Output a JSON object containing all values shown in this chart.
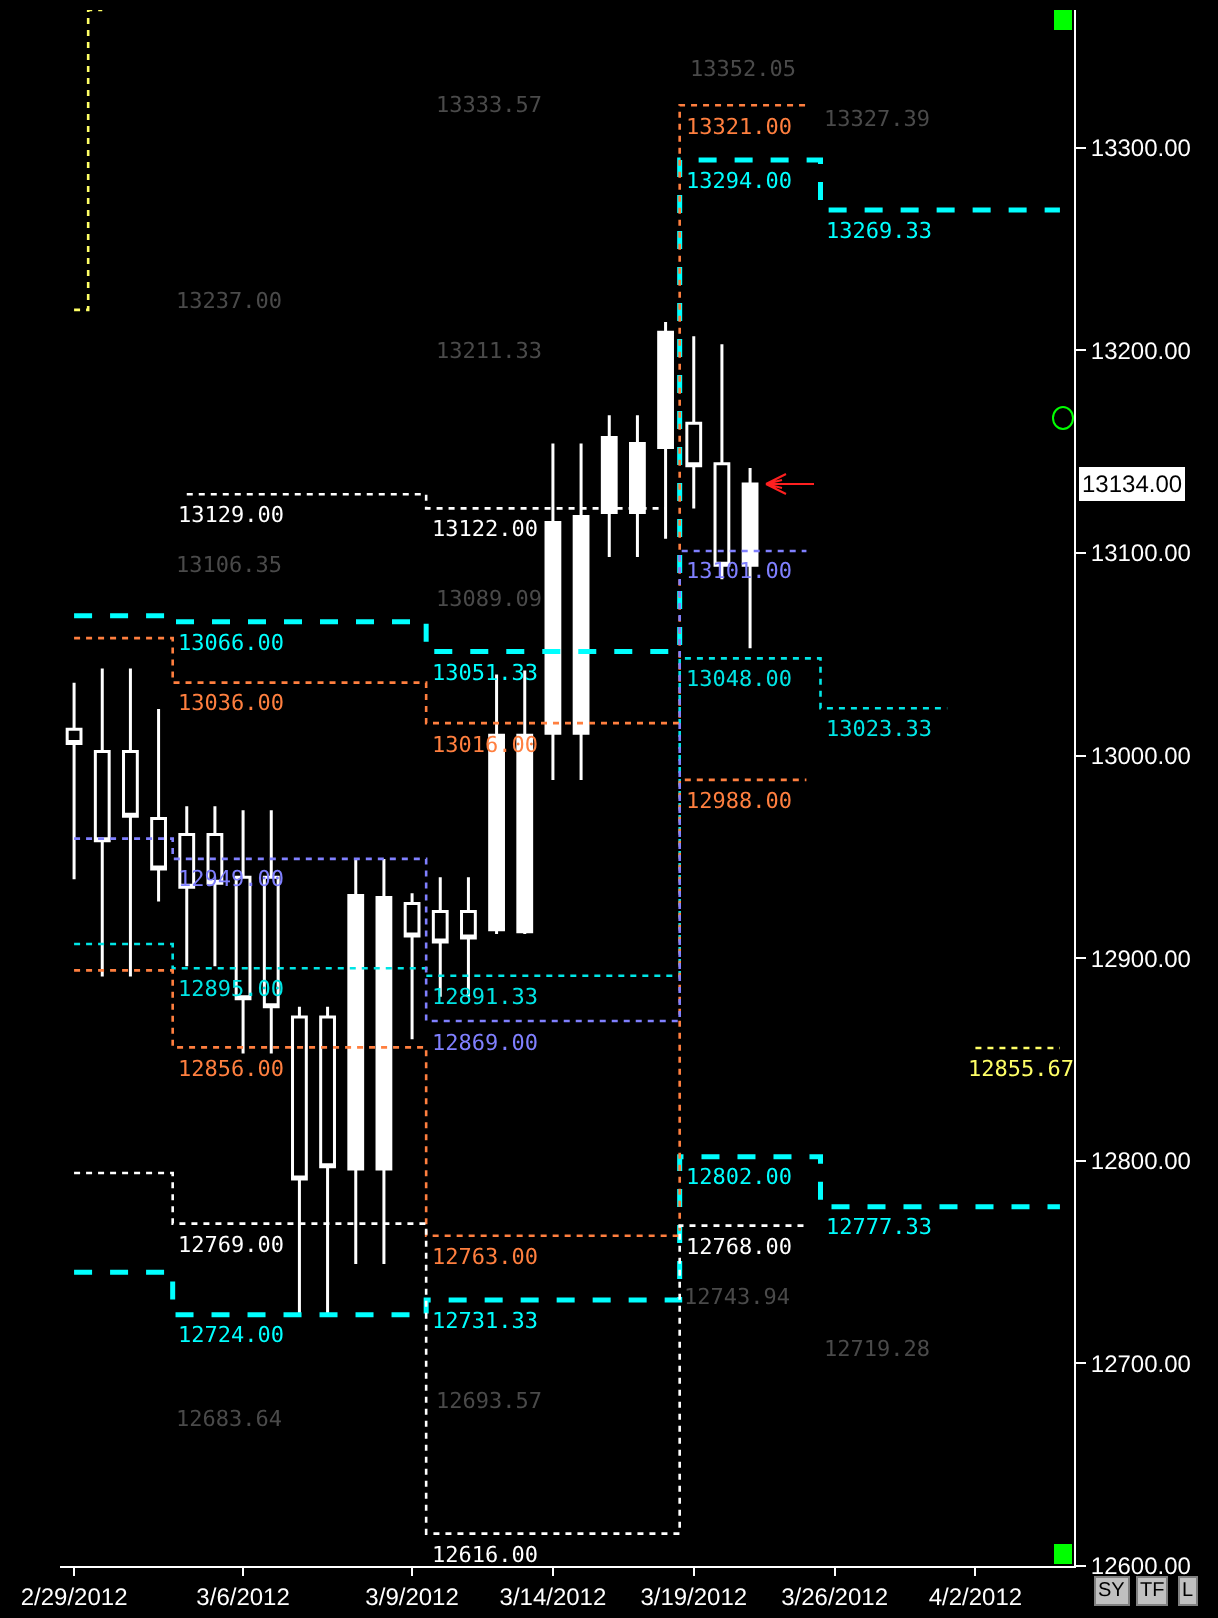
{
  "chart_data": {
    "type": "candlestick",
    "categories": [
      "2/29/2012",
      null,
      null,
      null,
      null,
      null,
      "3/6/2012",
      null,
      null,
      null,
      null,
      null,
      "3/9/2012",
      null,
      null,
      null,
      null,
      "3/14/2012",
      null,
      null,
      null,
      null,
      "3/19/2012",
      null,
      null,
      null,
      null,
      "3/26/2012",
      null,
      null,
      null,
      null,
      "4/2/2012",
      null,
      null,
      null
    ],
    "ohlc": [
      [
        13013,
        13036,
        12939,
        13006
      ],
      [
        13002,
        13043,
        12891,
        12958
      ],
      [
        13002,
        13043,
        12891,
        12970
      ],
      [
        12969,
        13023,
        12928,
        12944
      ],
      [
        12961,
        12975,
        12896,
        12935
      ],
      [
        12961,
        12975,
        12896,
        12937
      ],
      [
        12940,
        12973,
        12853,
        12880
      ],
      [
        12940,
        12973,
        12853,
        12876
      ],
      [
        12871,
        12876,
        12723,
        12791
      ],
      [
        12871,
        12876,
        12723,
        12797
      ],
      [
        12796,
        12949,
        12749,
        12931
      ],
      [
        12796,
        12949,
        12749,
        12930
      ],
      [
        12927,
        12932,
        12860,
        12911
      ],
      [
        12923,
        12940,
        12881,
        12908
      ],
      [
        12923,
        12940,
        12881,
        12910
      ],
      [
        12914,
        13040,
        12912,
        13010
      ],
      [
        12913,
        13042,
        12912,
        13010
      ],
      [
        13011,
        13154,
        12988,
        13115
      ],
      [
        13011,
        13154,
        12988,
        13118
      ],
      [
        13120,
        13168,
        13098,
        13157
      ],
      [
        13120,
        13168,
        13098,
        13154
      ],
      [
        13152,
        13214,
        13107,
        13209
      ],
      [
        13164,
        13207,
        13122,
        13143
      ],
      [
        13144,
        13203,
        13087,
        13094
      ],
      [
        13094,
        13142,
        13053,
        13134
      ],
      null,
      null,
      null,
      null,
      null,
      null,
      null,
      null,
      null,
      null,
      null
    ],
    "color": "#ffffff",
    "series": [
      {
        "type": "step",
        "color": "#00ffff",
        "line_style": "dashed",
        "values": [
          13069,
          13069,
          13069,
          13069,
          13066,
          13066,
          13066,
          13066,
          13066,
          13066,
          13066,
          13066,
          13066,
          13051.33,
          13051.33,
          13051.33,
          13051.33,
          13051.33,
          13051.33,
          13051.33,
          13051.33,
          13051.33,
          13294,
          13294,
          13294,
          13294,
          13294,
          13269.33,
          13269.33,
          13269.33,
          13269.33,
          13269.33,
          13269.33,
          13269.33,
          13269.33,
          13269.33
        ],
        "value_labels": [
          null,
          null,
          null,
          null,
          "13066.00",
          null,
          null,
          null,
          null,
          null,
          null,
          null,
          null,
          "13051.33",
          null,
          null,
          null,
          null,
          null,
          null,
          null,
          null,
          "13294.00",
          null,
          null,
          null,
          null,
          "13269.33",
          null,
          null,
          null,
          null,
          null,
          null,
          null,
          null
        ]
      },
      {
        "type": "step",
        "color": "#00ffff",
        "line_style": "dashed",
        "values": [
          12745,
          12745,
          12745,
          12745,
          12724,
          12724,
          12724,
          12724,
          12724,
          12724,
          12724,
          12724,
          12724,
          12731.33,
          12731.33,
          12731.33,
          12731.33,
          12731.33,
          12731.33,
          12731.33,
          12731.33,
          12731.33,
          12802,
          12802,
          12802,
          12802,
          12802,
          12777.33,
          12777.33,
          12777.33,
          12777.33,
          12777.33,
          12777.33,
          12777.33,
          12777.33,
          12777.33
        ],
        "value_labels": [
          null,
          null,
          null,
          null,
          "12724.00",
          null,
          null,
          null,
          null,
          null,
          null,
          null,
          null,
          "12731.33",
          null,
          null,
          null,
          null,
          null,
          null,
          null,
          null,
          "12802.00",
          null,
          null,
          null,
          null,
          "12777.33",
          null,
          null,
          null,
          null,
          null,
          null,
          null,
          null
        ]
      },
      {
        "type": "step",
        "color": "#00e5e5",
        "line_style": "dotted",
        "values": [
          12907,
          12907,
          12907,
          12907,
          12895,
          12895,
          12895,
          12895,
          12895,
          12895,
          12895,
          12895,
          12895,
          12891.33,
          12891.33,
          12891.33,
          12891.33,
          12891.33,
          12891.33,
          12891.33,
          12891.33,
          12891.33,
          13048,
          13048,
          13048,
          13048,
          13048,
          13023.33,
          13023.33,
          13023.33,
          13023.33,
          13023.33,
          null,
          null,
          null,
          null
        ],
        "value_labels": [
          null,
          null,
          null,
          null,
          "12895.00",
          null,
          null,
          null,
          null,
          null,
          null,
          null,
          null,
          "12891.33",
          null,
          null,
          null,
          null,
          null,
          null,
          null,
          null,
          "13048.00",
          null,
          null,
          null,
          null,
          "13023.33",
          null,
          null,
          null,
          null,
          null,
          null,
          null,
          null
        ]
      },
      {
        "type": "step",
        "color": "#ff7f3f",
        "line_style": "dotted",
        "values": [
          13058,
          13058,
          13058,
          13058,
          13036,
          13036,
          13036,
          13036,
          13036,
          13036,
          13036,
          13036,
          13036,
          13016,
          13016,
          13016,
          13016,
          13016,
          13016,
          13016,
          13016,
          13016,
          13321,
          13321,
          13321,
          13321,
          13321,
          null,
          null,
          null,
          null,
          null,
          null,
          null,
          null,
          null
        ],
        "value_labels": [
          null,
          null,
          null,
          null,
          "13036.00",
          null,
          null,
          null,
          null,
          null,
          null,
          null,
          null,
          "13016.00",
          null,
          null,
          null,
          null,
          null,
          null,
          null,
          null,
          "13321.00",
          null,
          null,
          null,
          null,
          null,
          null,
          null,
          null,
          null,
          null,
          null,
          null,
          null
        ]
      },
      {
        "type": "step",
        "color": "#ff7f3f",
        "line_style": "dotted",
        "values": [
          12894,
          12894,
          12894,
          12894,
          12856,
          12856,
          12856,
          12856,
          12856,
          12856,
          12856,
          12856,
          12856,
          12763,
          12763,
          12763,
          12763,
          12763,
          12763,
          12763,
          12763,
          12763,
          12988,
          12988,
          12988,
          12988,
          12988,
          null,
          null,
          null,
          null,
          null,
          null,
          null,
          null,
          null
        ],
        "value_labels": [
          null,
          null,
          null,
          null,
          "12856.00",
          null,
          null,
          null,
          null,
          null,
          null,
          null,
          null,
          "12763.00",
          null,
          null,
          null,
          null,
          null,
          null,
          null,
          null,
          "12988.00",
          null,
          null,
          null,
          null,
          null,
          null,
          null,
          null,
          null,
          null,
          null,
          null,
          null
        ]
      },
      {
        "type": "step",
        "color": "#8080ff",
        "line_style": "dotted",
        "values": [
          12959,
          12959,
          12959,
          12959,
          12949,
          12949,
          12949,
          12949,
          12949,
          12949,
          12949,
          12949,
          12949,
          12869,
          12869,
          12869,
          12869,
          12869,
          12869,
          12869,
          12869,
          12869,
          13101,
          13101,
          13101,
          13101,
          13101,
          null,
          null,
          null,
          null,
          null,
          null,
          null,
          null,
          null
        ],
        "value_labels": [
          null,
          null,
          null,
          null,
          "12949.00",
          null,
          null,
          null,
          null,
          null,
          null,
          null,
          null,
          "12869.00",
          null,
          null,
          null,
          null,
          null,
          null,
          null,
          null,
          "13101.00",
          null,
          null,
          null,
          null,
          null,
          null,
          null,
          null,
          null,
          null,
          null,
          null,
          null
        ]
      },
      {
        "type": "step",
        "color": "#ffffff",
        "line_style": "dotted",
        "values": [
          null,
          null,
          null,
          null,
          13129,
          13129,
          13129,
          13129,
          13129,
          13129,
          13129,
          13129,
          13129,
          13122,
          13122,
          13122,
          13122,
          13122,
          13122,
          13122,
          13122,
          13122,
          null,
          null,
          null,
          null,
          null,
          null,
          null,
          null,
          null,
          null,
          null,
          null,
          null,
          null
        ],
        "value_labels": [
          null,
          null,
          null,
          null,
          "13129.00",
          null,
          null,
          null,
          null,
          null,
          null,
          null,
          null,
          "13122.00",
          null,
          null,
          null,
          null,
          null,
          null,
          null,
          null,
          null,
          null,
          null,
          null,
          null,
          null,
          null,
          null,
          null,
          null,
          null,
          null,
          null,
          null
        ]
      },
      {
        "type": "step",
        "color": "#ffffff",
        "line_style": "dotted",
        "values": [
          12794,
          12794,
          12794,
          12794,
          12769,
          12769,
          12769,
          12769,
          12769,
          12769,
          12769,
          12769,
          12769,
          12616,
          12616,
          12616,
          12616,
          12616,
          12616,
          12616,
          12616,
          12616,
          12768,
          12768,
          12768,
          12768,
          12768,
          null,
          null,
          null,
          null,
          null,
          null,
          null,
          null,
          null
        ],
        "value_labels": [
          null,
          null,
          null,
          null,
          "12769.00",
          null,
          null,
          null,
          null,
          null,
          null,
          null,
          null,
          "12616.00",
          null,
          null,
          null,
          null,
          null,
          null,
          null,
          null,
          "12768.00",
          null,
          null,
          null,
          null,
          null,
          null,
          null,
          null,
          null,
          null,
          null,
          null,
          null
        ]
      },
      {
        "type": "step",
        "color": "#ffff66",
        "line_style": "dotted",
        "values": [
          null,
          null,
          null,
          null,
          null,
          null,
          null,
          null,
          null,
          null,
          null,
          null,
          null,
          null,
          null,
          null,
          null,
          null,
          null,
          null,
          null,
          null,
          null,
          null,
          null,
          null,
          null,
          null,
          null,
          null,
          null,
          null,
          12855.67,
          12855.67,
          12855.67,
          12855.67
        ],
        "value_labels": [
          null,
          null,
          null,
          null,
          null,
          null,
          null,
          null,
          null,
          null,
          null,
          null,
          null,
          null,
          null,
          null,
          null,
          null,
          null,
          null,
          null,
          null,
          null,
          null,
          null,
          null,
          null,
          null,
          null,
          null,
          null,
          null,
          "12855.67",
          null,
          null,
          null
        ]
      },
      {
        "type": "step",
        "color": "#ffff66",
        "line_style": "dotted",
        "values": [
          13220,
          13368,
          null,
          null,
          null,
          null,
          null,
          null,
          null,
          null,
          null,
          null,
          null,
          null,
          null,
          null,
          null,
          null,
          null,
          null,
          null,
          null,
          null,
          null,
          null,
          null,
          null,
          null,
          null,
          null,
          null,
          null,
          null,
          null,
          null,
          null
        ],
        "value_labels": [
          null,
          null,
          null,
          null,
          null,
          null,
          null,
          null,
          null,
          null,
          null,
          null,
          null,
          null,
          null,
          null,
          null,
          null,
          null,
          null,
          null,
          null,
          null,
          null,
          null,
          null,
          null,
          null,
          null,
          null,
          null,
          null,
          null,
          null,
          null,
          null
        ]
      }
    ],
    "ylim": [
      12600,
      13368
    ],
    "yticks": [
      {
        "value": 12600,
        "label": "12600.00"
      },
      {
        "value": 12700,
        "label": "12700.00"
      },
      {
        "value": 12800,
        "label": "12800.00"
      },
      {
        "value": 12900,
        "label": "12900.00"
      },
      {
        "value": 13000,
        "label": "13000.00"
      },
      {
        "value": 13100,
        "label": "13100.00"
      },
      {
        "value": 13200,
        "label": "13200.00"
      },
      {
        "value": 13300,
        "label": "13300.00"
      }
    ],
    "annotations": [
      "13352.05",
      "13333.57",
      "13327.39",
      "13237.00",
      "13211.33",
      "13106.35",
      "13089.09",
      "12743.94",
      "12719.28",
      "12693.57",
      "12683.64",
      "13134.00",
      "SY",
      "TF",
      "L"
    ]
  }
}
